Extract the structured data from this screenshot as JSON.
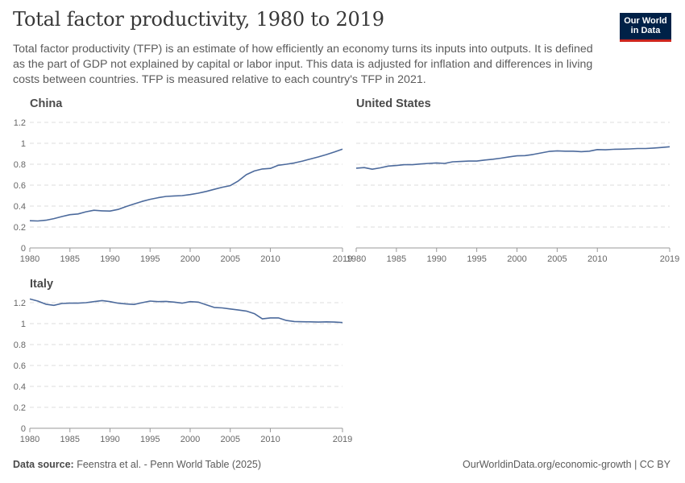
{
  "header": {
    "title": "Total factor productivity, 1980 to 2019",
    "subtitle": "Total factor productivity (TFP) is an estimate of how efficiently an economy turns its inputs into outputs. It is defined as the part of GDP not explained by capital or labor input. This data is adjusted for inflation and differences in living costs between countries. TFP is measured relative to each country's TFP in 2021."
  },
  "logo": {
    "line1": "Our World",
    "line2": "in Data",
    "bg_color": "#002147",
    "accent_color": "#ce261e"
  },
  "footer": {
    "source_label": "Data source:",
    "source_text": "Feenstra et al. - Penn World Table (2025)",
    "right_text": "OurWorldinData.org/economic-growth | CC BY"
  },
  "style": {
    "line_color": "#4c6a9c",
    "grid_color": "#dddddd",
    "axis_color": "#999999"
  },
  "chart_data": [
    {
      "type": "line",
      "title": "China",
      "x_ticks": [
        1980,
        1985,
        1990,
        1995,
        2000,
        2005,
        2010,
        2019
      ],
      "y_ticks": [
        0,
        0.2,
        0.4,
        0.6,
        0.8,
        1,
        1.2
      ],
      "y_tick_labels": [
        "0",
        "0.2",
        "0.4",
        "0.6",
        "0.8",
        "1",
        "1.2"
      ],
      "xlim": [
        1980,
        2019
      ],
      "ylim": [
        0,
        1.2
      ],
      "grid": true,
      "x": [
        1980,
        1981,
        1982,
        1983,
        1984,
        1985,
        1986,
        1987,
        1988,
        1989,
        1990,
        1991,
        1992,
        1993,
        1994,
        1995,
        1996,
        1997,
        1998,
        1999,
        2000,
        2001,
        2002,
        2003,
        2004,
        2005,
        2006,
        2007,
        2008,
        2009,
        2010,
        2011,
        2012,
        2013,
        2014,
        2015,
        2016,
        2017,
        2018,
        2019
      ],
      "values": [
        0.26,
        0.258,
        0.265,
        0.28,
        0.3,
        0.318,
        0.325,
        0.345,
        0.36,
        0.355,
        0.352,
        0.368,
        0.395,
        0.42,
        0.445,
        0.465,
        0.48,
        0.492,
        0.497,
        0.5,
        0.51,
        0.523,
        0.54,
        0.56,
        0.58,
        0.595,
        0.64,
        0.7,
        0.735,
        0.755,
        0.76,
        0.79,
        0.8,
        0.812,
        0.83,
        0.85,
        0.87,
        0.892,
        0.917,
        0.945
      ]
    },
    {
      "type": "line",
      "title": "United States",
      "x_ticks": [
        1980,
        1985,
        1990,
        1995,
        2000,
        2005,
        2010,
        2019
      ],
      "y_ticks": [
        0,
        0.2,
        0.4,
        0.6,
        0.8,
        1,
        1.2
      ],
      "xlim": [
        1980,
        2019
      ],
      "ylim": [
        0,
        1.2
      ],
      "grid": true,
      "x": [
        1980,
        1981,
        1982,
        1983,
        1984,
        1985,
        1986,
        1987,
        1988,
        1989,
        1990,
        1991,
        1992,
        1993,
        1994,
        1995,
        1996,
        1997,
        1998,
        1999,
        2000,
        2001,
        2002,
        2003,
        2004,
        2005,
        2006,
        2007,
        2008,
        2009,
        2010,
        2011,
        2012,
        2013,
        2014,
        2015,
        2016,
        2017,
        2018,
        2019
      ],
      "values": [
        0.762,
        0.768,
        0.752,
        0.765,
        0.782,
        0.788,
        0.795,
        0.795,
        0.802,
        0.808,
        0.812,
        0.808,
        0.823,
        0.826,
        0.83,
        0.83,
        0.84,
        0.848,
        0.858,
        0.87,
        0.88,
        0.882,
        0.893,
        0.908,
        0.922,
        0.928,
        0.925,
        0.925,
        0.92,
        0.925,
        0.94,
        0.938,
        0.942,
        0.944,
        0.946,
        0.95,
        0.95,
        0.955,
        0.96,
        0.967
      ]
    },
    {
      "type": "line",
      "title": "Italy",
      "x_ticks": [
        1980,
        1985,
        1990,
        1995,
        2000,
        2005,
        2010,
        2019
      ],
      "y_ticks": [
        0,
        0.2,
        0.4,
        0.6,
        0.8,
        1,
        1.2
      ],
      "y_tick_labels": [
        "0",
        "0.2",
        "0.4",
        "0.6",
        "0.8",
        "1",
        "1.2"
      ],
      "xlim": [
        1980,
        2019
      ],
      "ylim": [
        0,
        1.2
      ],
      "grid": true,
      "x": [
        1980,
        1981,
        1982,
        1983,
        1984,
        1985,
        1986,
        1987,
        1988,
        1989,
        1990,
        1991,
        1992,
        1993,
        1994,
        1995,
        1996,
        1997,
        1998,
        1999,
        2000,
        2001,
        2002,
        2003,
        2004,
        2005,
        2006,
        2007,
        2008,
        2009,
        2010,
        2011,
        2012,
        2013,
        2014,
        2015,
        2016,
        2017,
        2018,
        2019
      ],
      "values": [
        1.235,
        1.215,
        1.185,
        1.175,
        1.192,
        1.195,
        1.195,
        1.2,
        1.21,
        1.22,
        1.21,
        1.195,
        1.188,
        1.183,
        1.2,
        1.215,
        1.21,
        1.212,
        1.205,
        1.195,
        1.21,
        1.205,
        1.18,
        1.155,
        1.15,
        1.14,
        1.13,
        1.12,
        1.095,
        1.045,
        1.055,
        1.055,
        1.03,
        1.02,
        1.018,
        1.017,
        1.015,
        1.017,
        1.015,
        1.01
      ]
    }
  ]
}
